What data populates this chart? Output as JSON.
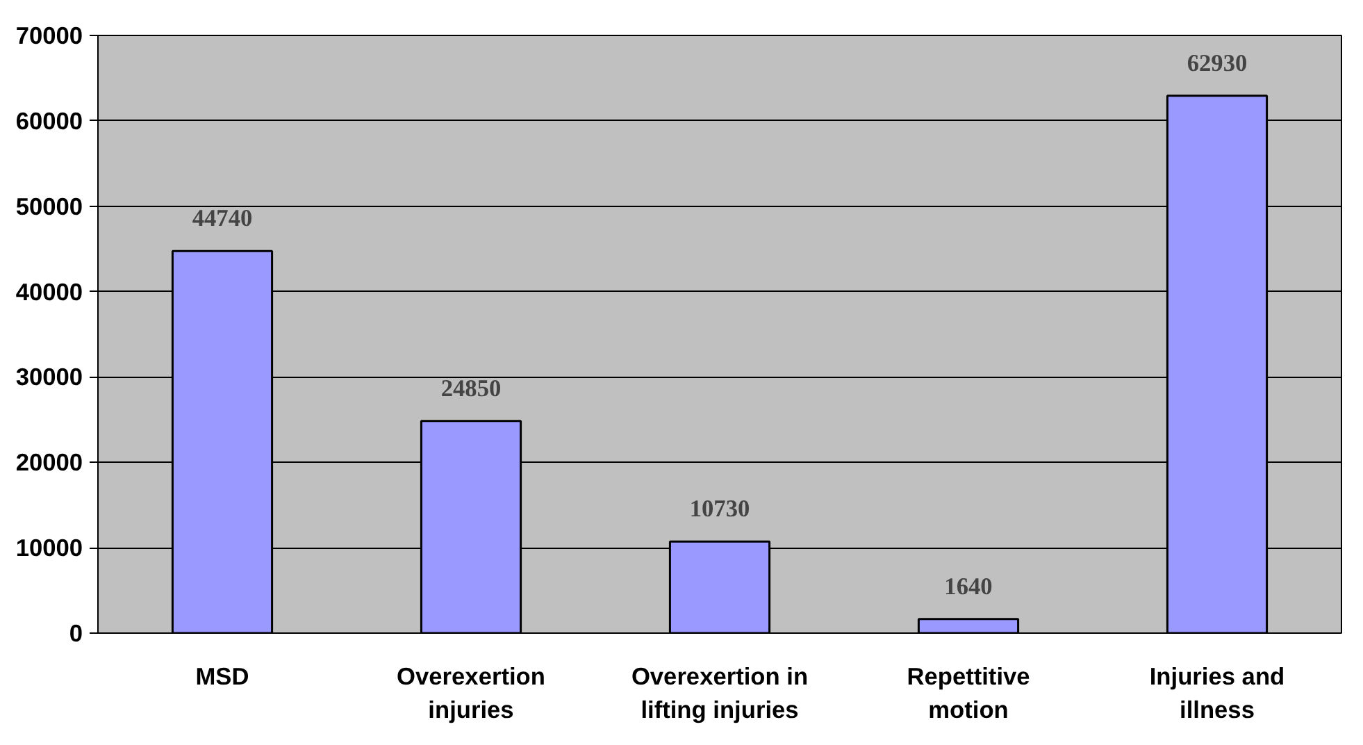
{
  "chart_data": {
    "type": "bar",
    "categories": [
      "MSD",
      "Overexertion injuries",
      "Overexertion in lifting injuries",
      "Repettitive motion",
      "Injuries and illness"
    ],
    "values": [
      44740,
      24850,
      10730,
      1640,
      62930
    ],
    "color": "#9999ff",
    "ylim": [
      0,
      70000
    ],
    "yticks": [
      0,
      10000,
      20000,
      30000,
      40000,
      50000,
      60000,
      70000
    ],
    "grid": "y",
    "data_labels": true
  }
}
